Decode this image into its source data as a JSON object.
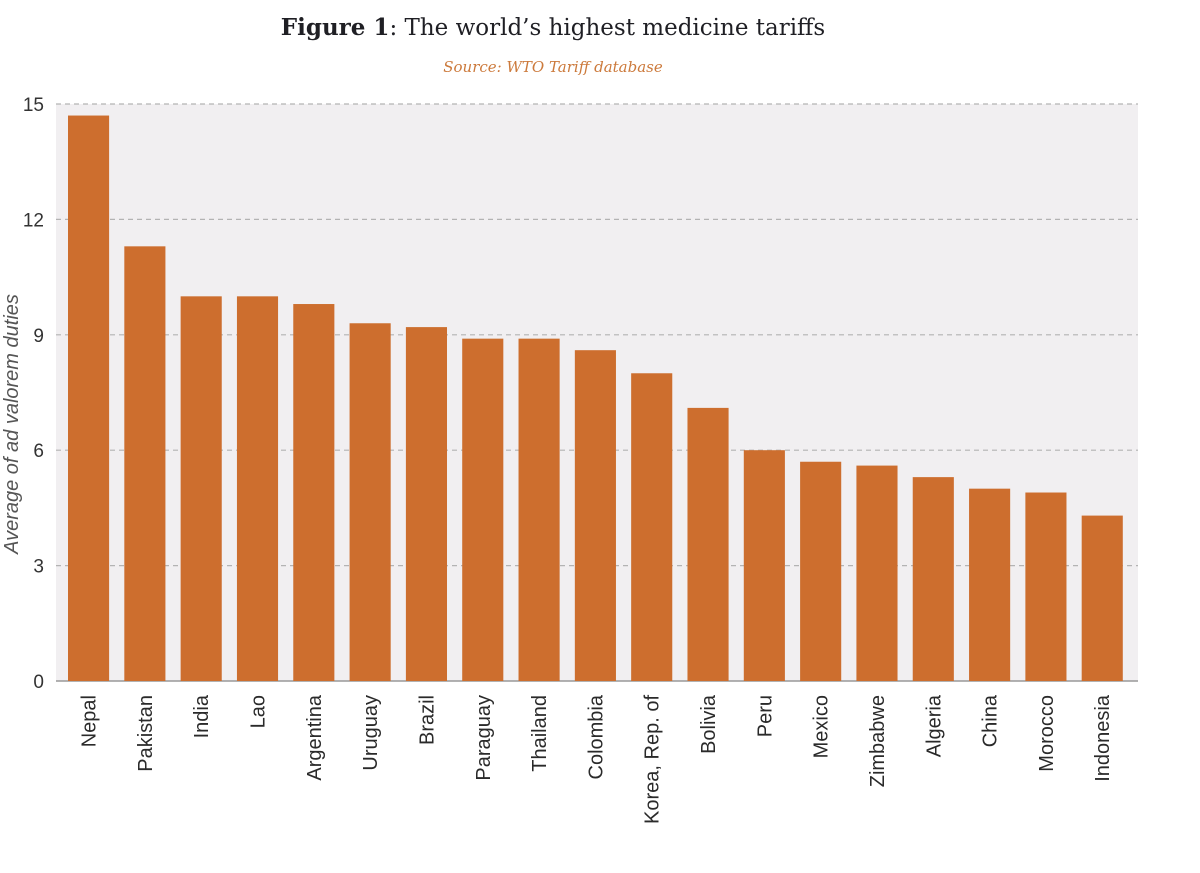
{
  "header": {
    "figure_label": "Figure 1",
    "title_rest": ": The world’s highest medicine tariffs",
    "source": "Source: WTO Tariff database"
  },
  "colors": {
    "bar": "#cd6e2e",
    "plot_background": "#f1eff1",
    "gridline": "#b3b3b3",
    "axis": "#999999",
    "source_text": "#cc7a3c"
  },
  "chart_data": {
    "type": "bar",
    "title": "Figure 1: The world’s highest medicine tariffs",
    "subtitle": "Source: WTO Tariff database",
    "xlabel": "",
    "ylabel": "Average of ad valorem duties",
    "ylim": [
      0,
      15
    ],
    "yticks": [
      0,
      3,
      6,
      9,
      12,
      15
    ],
    "grid": true,
    "legend": "none",
    "categories": [
      "Nepal",
      "Pakistan",
      "India",
      "Lao",
      "Argentina",
      "Uruguay",
      "Brazil",
      "Paraguay",
      "Thailand",
      "Colombia",
      "Korea, Rep. of",
      "Bolivia",
      "Peru",
      "Mexico",
      "Zimbabwe",
      "Algeria",
      "China",
      "Morocco",
      "Indonesia"
    ],
    "values": [
      14.7,
      11.3,
      10.0,
      10.0,
      9.8,
      9.3,
      9.2,
      8.9,
      8.9,
      8.6,
      8.0,
      7.1,
      6.0,
      5.7,
      5.6,
      5.3,
      5.0,
      4.9,
      4.3
    ]
  }
}
